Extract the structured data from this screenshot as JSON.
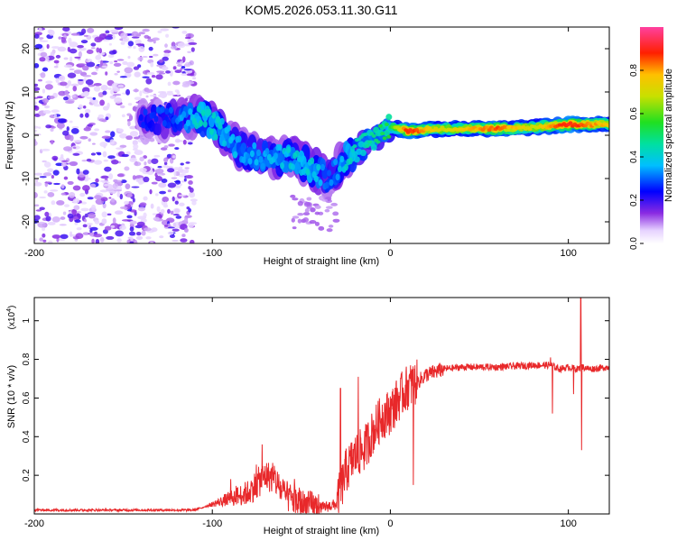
{
  "figure": {
    "title": "KOM5.2026.053.11.30.G11"
  },
  "colors": {
    "snr_line": "#e8282a",
    "axis": "#000000",
    "background": "#ffffff"
  },
  "chart_data": [
    {
      "type": "heatmap",
      "id": "spectrogram",
      "title": "KOM5.2026.053.11.30.G11",
      "xlabel": "Height of straight line (km)",
      "ylabel": "Frequency (Hz)",
      "xlim": [
        -200,
        123
      ],
      "ylim": [
        -25,
        25
      ],
      "xticks": [
        -200,
        -100,
        0,
        100
      ],
      "yticks": [
        -20,
        -10,
        0,
        10,
        20
      ],
      "colorbar": {
        "label": "Normalized spectral amplitude",
        "range": [
          0,
          1
        ],
        "ticks": [
          "0.0",
          "0.2",
          "0.4",
          "0.6",
          "0.8"
        ],
        "tick_values": [
          0.0,
          0.2,
          0.4,
          0.6,
          0.8
        ]
      },
      "ridge": {
        "description_points": [
          {
            "x": -140,
            "freq": 3,
            "amp": 0.25
          },
          {
            "x": -120,
            "freq": 4,
            "amp": 0.3
          },
          {
            "x": -105,
            "freq": 4,
            "amp": 0.45
          },
          {
            "x": -95,
            "freq": 1,
            "amp": 0.4
          },
          {
            "x": -85,
            "freq": -3,
            "amp": 0.35
          },
          {
            "x": -70,
            "freq": -5,
            "amp": 0.35
          },
          {
            "x": -55,
            "freq": -5,
            "amp": 0.4
          },
          {
            "x": -42,
            "freq": -8,
            "amp": 0.4
          },
          {
            "x": -35,
            "freq": -10,
            "amp": 0.3
          },
          {
            "x": -25,
            "freq": -5,
            "amp": 0.4
          },
          {
            "x": -10,
            "freq": -1,
            "amp": 0.5
          },
          {
            "x": 0,
            "freq": 2,
            "amp": 0.55
          },
          {
            "x": 10,
            "freq": 1,
            "amp": 0.9
          },
          {
            "x": 30,
            "freq": 1.5,
            "amp": 0.7
          },
          {
            "x": 60,
            "freq": 1.5,
            "amp": 0.85
          },
          {
            "x": 80,
            "freq": 1.8,
            "amp": 0.7
          },
          {
            "x": 100,
            "freq": 2.5,
            "amp": 0.9
          },
          {
            "x": 123,
            "freq": 2.5,
            "amp": 0.75
          }
        ]
      }
    },
    {
      "type": "line",
      "id": "snr",
      "xlabel": "Height of straight line (km)",
      "ylabel": "SNR (10 * v/v)",
      "yscale_label": "(x10",
      "yscale_exp": "4",
      "yscale_suffix": ")",
      "xlim": [
        -200,
        123
      ],
      "ylim": [
        0,
        1.12
      ],
      "xticks": [
        -200,
        -100,
        0,
        100
      ],
      "yticks": [
        0.2,
        0.4,
        0.6,
        0.8,
        1
      ],
      "series": [
        {
          "name": "SNR",
          "color": "#e8282a",
          "x": [
            -200,
            -150,
            -110,
            -100,
            -90,
            -80,
            -70,
            -65,
            -60,
            -50,
            -40,
            -30,
            -25,
            -20,
            -15,
            -10,
            -5,
            0,
            5,
            10,
            15,
            20,
            30,
            40,
            60,
            80,
            90,
            95,
            100,
            105,
            108,
            112,
            123
          ],
          "y": [
            0.02,
            0.02,
            0.02,
            0.05,
            0.08,
            0.11,
            0.2,
            0.18,
            0.1,
            0.05,
            0.03,
            0.05,
            0.22,
            0.3,
            0.33,
            0.42,
            0.5,
            0.53,
            0.6,
            0.66,
            0.68,
            0.72,
            0.75,
            0.76,
            0.76,
            0.77,
            0.77,
            0.75,
            0.76,
            0.75,
            0.76,
            0.75,
            0.76
          ]
        }
      ],
      "spikes": [
        {
          "x": -72,
          "peak": 0.36
        },
        {
          "x": -28,
          "peak": 0.65
        },
        {
          "x": -18,
          "peak": 0.71
        },
        {
          "x": 12,
          "peak": 0.75
        },
        {
          "x": 13,
          "peak": 0.15
        },
        {
          "x": 90,
          "peak": 0.81
        },
        {
          "x": 91,
          "peak": 0.52
        },
        {
          "x": 103,
          "peak": 0.62
        },
        {
          "x": 107,
          "peak": 1.12
        },
        {
          "x": 107.5,
          "peak": 0.33
        }
      ]
    }
  ]
}
